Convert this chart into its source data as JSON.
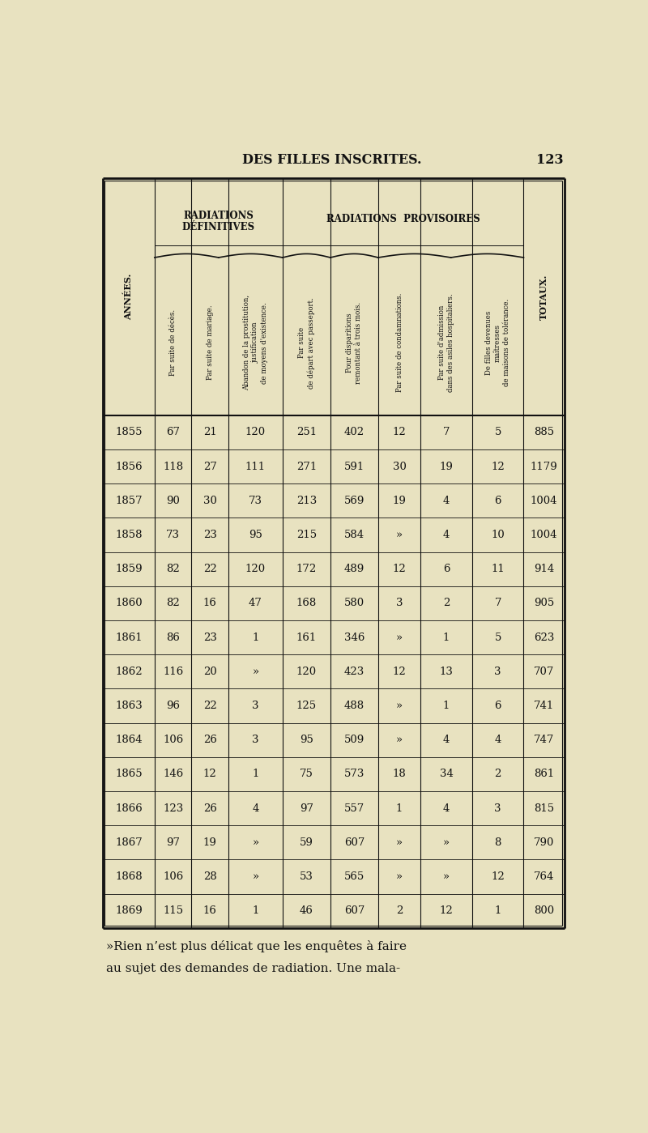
{
  "page_title": "DES FILLES INSCRITES.",
  "page_number": "123",
  "background_color": "#e8e2c0",
  "text_color": "#111111",
  "col_headers": [
    "ANNÉES.",
    "Par suite de décès.",
    "Par suite de mariage.",
    "Abandon de la prostitution,\njustification\nde moyens d'existence.",
    "Par suite\nde départ avec passeport.",
    "Pour disparitions\nremontant à trois mois.",
    "Par suite de condamnations.",
    "Par suite d'admission\ndans des asiles hospitaliers.",
    "De filles devenues\nmaîtresses\nde maisons de tolérance.",
    "TOTAUX."
  ],
  "rows": [
    [
      "1855",
      "67",
      "21",
      "120",
      "251",
      "402",
      "12",
      "7",
      "5",
      "885"
    ],
    [
      "1856",
      "118",
      "27",
      "111",
      "271",
      "591",
      "30",
      "19",
      "12",
      "1179"
    ],
    [
      "1857",
      "90",
      "30",
      "73",
      "213",
      "569",
      "19",
      "4",
      "6",
      "1004"
    ],
    [
      "1858",
      "73",
      "23",
      "95",
      "215",
      "584",
      "»",
      "4",
      "10",
      "1004"
    ],
    [
      "1859",
      "82",
      "22",
      "120",
      "172",
      "489",
      "12",
      "6",
      "11",
      "914"
    ],
    [
      "1860",
      "82",
      "16",
      "47",
      "168",
      "580",
      "3",
      "2",
      "7",
      "905"
    ],
    [
      "1861",
      "86",
      "23",
      "1",
      "161",
      "346",
      "»",
      "1",
      "5",
      "623"
    ],
    [
      "1862",
      "116",
      "20",
      "»",
      "120",
      "423",
      "12",
      "13",
      "3",
      "707"
    ],
    [
      "1863",
      "96",
      "22",
      "3",
      "125",
      "488",
      "»",
      "1",
      "6",
      "741"
    ],
    [
      "1864",
      "106",
      "26",
      "3",
      "95",
      "509",
      "»",
      "4",
      "4",
      "747"
    ],
    [
      "1865",
      "146",
      "12",
      "1",
      "75",
      "573",
      "18",
      "34",
      "2",
      "861"
    ],
    [
      "1866",
      "123",
      "26",
      "4",
      "97",
      "557",
      "1",
      "4",
      "3",
      "815"
    ],
    [
      "1867",
      "97",
      "19",
      "»",
      "59",
      "607",
      "»",
      "»",
      "8",
      "790"
    ],
    [
      "1868",
      "106",
      "28",
      "»",
      "53",
      "565",
      "»",
      "»",
      "12",
      "764"
    ],
    [
      "1869",
      "115",
      "16",
      "1",
      "46",
      "607",
      "2",
      "12",
      "1",
      "800"
    ]
  ],
  "footer_line1": "»Rien n’est plus délicat que les enquêtes à faire",
  "footer_line2": "au sujet des demandes de radiation. Une mala-",
  "group1_label_line1": "RADIATIONS",
  "group1_label_line2": "DÉFINITIVES",
  "group2_label": "RADIATIONS  PROVISOIRES"
}
